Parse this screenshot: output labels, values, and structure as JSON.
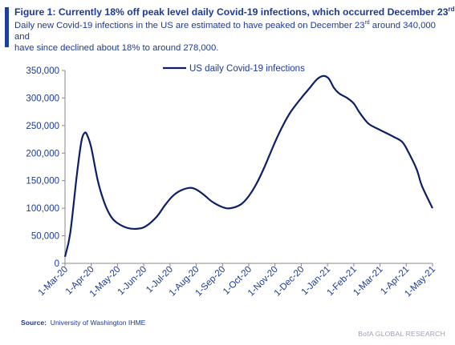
{
  "title": {
    "pre": "Figure 1: Currently 18% off peak level daily Covid-19 infections, which occurred December 23",
    "sup": "rd",
    "post": "."
  },
  "subtitle": {
    "line1_pre": "Daily new Covid-19 infections in the US are estimated to have peaked on December 23",
    "line1_sup": "rd",
    "line1_post": " around 340,000 and",
    "line2": "have since declined about 18% to around 278,000."
  },
  "source": {
    "label": "Source:",
    "text": "University of Washington IHME"
  },
  "credit": "BofA GLOBAL RESEARCH",
  "chart_data": {
    "type": "line",
    "series_name": "US daily Covid-19 infections",
    "color": "#0d1f66",
    "ylim": [
      0,
      350000
    ],
    "yticks": [
      0,
      50000,
      100000,
      150000,
      200000,
      250000,
      300000,
      350000
    ],
    "ytick_labels": [
      "0",
      "50,000",
      "100,000",
      "150,000",
      "200,000",
      "250,000",
      "300,000",
      "350,000"
    ],
    "xlim": [
      0,
      14
    ],
    "xtick_labels": [
      "1-Mar-20",
      "1-Apr-20",
      "1-May-20",
      "1-Jun-20",
      "1-Jul-20",
      "1-Aug-20",
      "1-Sep-20",
      "1-Oct-20",
      "1-Nov-20",
      "1-Dec-20",
      "1-Jan-21",
      "1-Feb-21",
      "1-Mar-21",
      "1-Apr-21",
      "1-May-21"
    ],
    "legend_position": "top-center",
    "grid": false,
    "points": [
      [
        0.0,
        12000
      ],
      [
        0.2,
        55000
      ],
      [
        0.45,
        160000
      ],
      [
        0.62,
        220000
      ],
      [
        0.75,
        237000
      ],
      [
        0.85,
        232000
      ],
      [
        1.0,
        210000
      ],
      [
        1.25,
        150000
      ],
      [
        1.5,
        110000
      ],
      [
        1.75,
        85000
      ],
      [
        2.0,
        73000
      ],
      [
        2.4,
        64000
      ],
      [
        2.8,
        63000
      ],
      [
        3.1,
        68000
      ],
      [
        3.5,
        85000
      ],
      [
        3.8,
        105000
      ],
      [
        4.1,
        122000
      ],
      [
        4.4,
        132000
      ],
      [
        4.75,
        137000
      ],
      [
        5.0,
        134000
      ],
      [
        5.3,
        124000
      ],
      [
        5.6,
        112000
      ],
      [
        6.0,
        102000
      ],
      [
        6.3,
        100000
      ],
      [
        6.7,
        107000
      ],
      [
        7.0,
        122000
      ],
      [
        7.3,
        145000
      ],
      [
        7.6,
        175000
      ],
      [
        8.0,
        220000
      ],
      [
        8.3,
        250000
      ],
      [
        8.6,
        275000
      ],
      [
        9.0,
        300000
      ],
      [
        9.3,
        317000
      ],
      [
        9.6,
        334000
      ],
      [
        9.85,
        340000
      ],
      [
        10.05,
        335000
      ],
      [
        10.25,
        318000
      ],
      [
        10.45,
        308000
      ],
      [
        10.75,
        300000
      ],
      [
        11.0,
        290000
      ],
      [
        11.2,
        275000
      ],
      [
        11.4,
        262000
      ],
      [
        11.6,
        252000
      ],
      [
        12.0,
        242000
      ],
      [
        12.5,
        230000
      ],
      [
        12.85,
        220000
      ],
      [
        13.1,
        200000
      ],
      [
        13.4,
        170000
      ],
      [
        13.6,
        140000
      ],
      [
        14.0,
        100000
      ]
    ]
  }
}
